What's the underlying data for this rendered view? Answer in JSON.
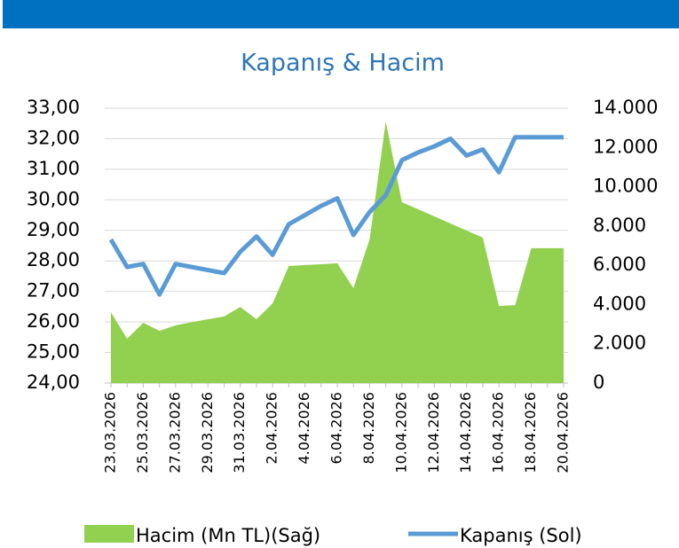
{
  "chart_data": {
    "type": "area-line",
    "title": "Kapanış & Hacim",
    "categories": [
      "23.03.2026",
      null,
      "25.03.2026",
      null,
      "27.03.2026",
      null,
      "29.03.2026",
      null,
      "31.03.2026",
      null,
      "2.04.2026",
      null,
      "4.04.2026",
      null,
      "6.04.2026",
      null,
      "8.04.2026",
      null,
      "10.04.2026",
      null,
      "12.04.2026",
      null,
      "14.04.2026",
      null,
      "16.04.2026",
      null,
      "18.04.2026",
      null,
      "20.04.2026"
    ],
    "series": [
      {
        "name": "Hacim (Mn TL)(Sağ)",
        "color": "#92d050",
        "axis": "y2",
        "type": "area",
        "values": [
          3600,
          2260,
          3070,
          2660,
          2940,
          3100,
          3250,
          3390,
          3880,
          3250,
          4060,
          5960,
          6010,
          6050,
          6100,
          4830,
          7320,
          13320,
          9210,
          8850,
          8490,
          8130,
          7770,
          7410,
          3930,
          3970,
          6870,
          6870,
          6870
        ]
      },
      {
        "name": "Kapanış (Sol)",
        "color": "#5b9bd5",
        "type": "line",
        "values": [
          28.7,
          27.8,
          27.9,
          26.9,
          27.9,
          27.8,
          27.7,
          27.6,
          28.3,
          28.8,
          28.2,
          29.2,
          29.5,
          29.8,
          30.05,
          28.85,
          29.6,
          30.15,
          31.3,
          31.55,
          31.75,
          32.0,
          31.45,
          31.65,
          30.9,
          32.05,
          32.05,
          32.05,
          32.05
        ]
      }
    ],
    "ylim": [
      24,
      33
    ],
    "yticks": [
      {
        "value": 24,
        "label": "24,00"
      },
      {
        "value": 25,
        "label": "25,00"
      },
      {
        "value": 26,
        "label": "26,00"
      },
      {
        "value": 27,
        "label": "27,00"
      },
      {
        "value": 28,
        "label": "28,00"
      },
      {
        "value": 29,
        "label": "29,00"
      },
      {
        "value": 30,
        "label": "30,00"
      },
      {
        "value": 31,
        "label": "31,00"
      },
      {
        "value": 32,
        "label": "32,00"
      },
      {
        "value": 33,
        "label": "33,00"
      }
    ],
    "y2lim": [
      0,
      14000
    ],
    "y2ticks": [
      0,
      {
        "value": 2000,
        "label": "2.000"
      },
      {
        "value": 4000,
        "label": "4.000"
      },
      {
        "value": 6000,
        "label": "6.000"
      },
      {
        "value": 8000,
        "label": "8.000"
      },
      {
        "value": 10000,
        "label": "10.000"
      },
      {
        "value": 12000,
        "label": "12.000"
      },
      {
        "value": 14000,
        "label": "14.000"
      }
    ],
    "grid": true
  }
}
